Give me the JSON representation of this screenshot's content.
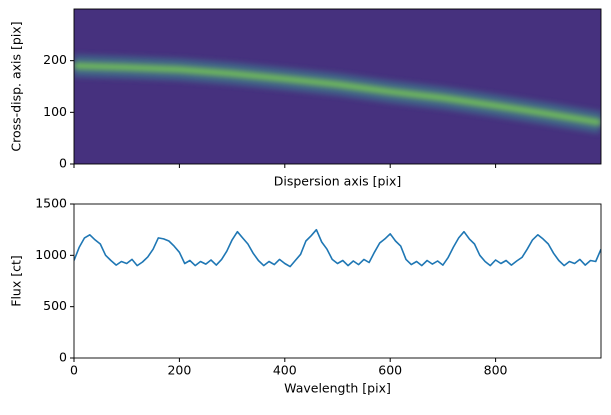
{
  "chart_data": [
    {
      "type": "trace-image",
      "xlabel": "Dispersion axis [pix]",
      "ylabel": "Cross-disp. axis [pix]",
      "background": "#46317e",
      "color": "#7cd24f",
      "halo": "#3f6e8c",
      "x": [
        0,
        100,
        200,
        300,
        400,
        500,
        600,
        700,
        800,
        900,
        1000
      ],
      "y": [
        190,
        187,
        183,
        175,
        165,
        154,
        140,
        128,
        113,
        97,
        80
      ],
      "xlim": [
        0,
        1000
      ],
      "ylim": [
        0,
        300
      ],
      "xticks": [
        0,
        200,
        400,
        600,
        800
      ],
      "yticks": [
        0,
        100,
        200
      ],
      "show_xtick_labels": false
    },
    {
      "type": "line",
      "xlabel": "Wavelength [pix]",
      "ylabel": "Flux [ct]",
      "color": "#1f77b4",
      "x": [
        0,
        10,
        20,
        30,
        40,
        50,
        60,
        70,
        80,
        90,
        100,
        110,
        120,
        130,
        140,
        150,
        160,
        170,
        180,
        190,
        200,
        210,
        220,
        230,
        240,
        250,
        260,
        270,
        280,
        290,
        300,
        310,
        320,
        330,
        340,
        350,
        360,
        370,
        380,
        390,
        400,
        410,
        420,
        430,
        440,
        450,
        460,
        470,
        480,
        490,
        500,
        510,
        520,
        530,
        540,
        550,
        560,
        570,
        580,
        590,
        600,
        610,
        620,
        630,
        640,
        650,
        660,
        670,
        680,
        690,
        700,
        710,
        720,
        730,
        740,
        750,
        760,
        770,
        780,
        790,
        800,
        810,
        820,
        830,
        840,
        850,
        860,
        870,
        880,
        890,
        900,
        910,
        920,
        930,
        940,
        950,
        960,
        970,
        980,
        990,
        1000
      ],
      "values": [
        950,
        1080,
        1170,
        1200,
        1150,
        1110,
        1000,
        950,
        905,
        940,
        920,
        960,
        900,
        935,
        985,
        1060,
        1170,
        1160,
        1140,
        1090,
        1030,
        920,
        950,
        900,
        940,
        915,
        955,
        905,
        960,
        1040,
        1150,
        1230,
        1170,
        1110,
        1020,
        950,
        900,
        940,
        910,
        960,
        920,
        890,
        950,
        1010,
        1140,
        1190,
        1250,
        1130,
        1060,
        960,
        920,
        950,
        900,
        945,
        910,
        960,
        930,
        1030,
        1120,
        1160,
        1210,
        1140,
        1090,
        960,
        910,
        940,
        900,
        950,
        915,
        945,
        905,
        980,
        1080,
        1170,
        1230,
        1160,
        1110,
        1000,
        940,
        900,
        955,
        920,
        950,
        905,
        945,
        980,
        1060,
        1150,
        1200,
        1160,
        1110,
        1020,
        950,
        900,
        940,
        920,
        960,
        905,
        950,
        940,
        1060
      ],
      "xlim": [
        0,
        1000
      ],
      "ylim": [
        0,
        1500
      ],
      "xticks": [
        0,
        200,
        400,
        600,
        800
      ],
      "yticks": [
        0,
        500,
        1000,
        1500
      ],
      "show_xtick_labels": true
    }
  ]
}
